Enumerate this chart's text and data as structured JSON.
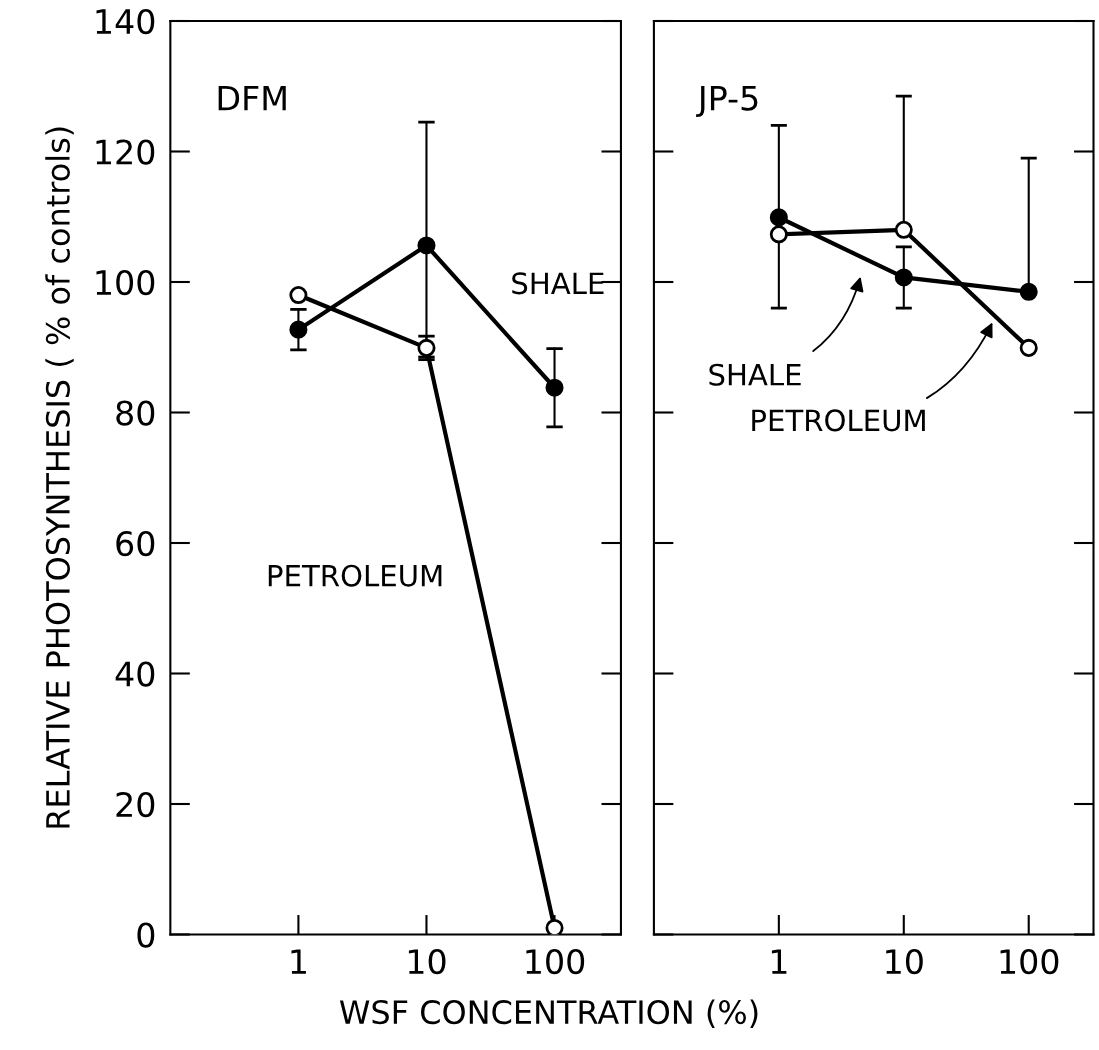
{
  "chart_data": [
    {
      "type": "line",
      "title": "DFM",
      "ylabel": "RELATIVE PHOTOSYNTHESIS ( % of controls)",
      "xlabel": "WSF CONCENTRATION (%)",
      "log": "x",
      "xlim": [
        0.1,
        330
      ],
      "xticks": [
        1,
        10,
        100
      ],
      "ylim": [
        0,
        140
      ],
      "yticks": [
        0,
        20,
        40,
        60,
        80,
        100,
        120,
        140
      ],
      "grid": false,
      "legend": false,
      "series": [
        {
          "color": "#000000",
          "marker": "circle",
          "x": [
            1,
            10,
            100
          ],
          "values": [
            92.7,
            105.6,
            83.8
          ],
          "errors": [
            3.1,
            [
              88.5,
              124.5
            ],
            6
          ]
        },
        {
          "color": "#000000",
          "marker": "circle",
          "x": [
            1,
            10,
            100
          ],
          "values": [
            98,
            89.9,
            1
          ],
          "errors": [
            null,
            1.8,
            null
          ]
        }
      ],
      "annotations": [
        "SHALE",
        "PETROLEUM"
      ]
    },
    {
      "type": "line",
      "title": "JP-5",
      "log": "x",
      "xlim": [
        0.1,
        330
      ],
      "xticks": [
        1,
        10,
        100
      ],
      "ylim": [
        0,
        140
      ],
      "yticks": [
        0,
        20,
        40,
        60,
        80,
        100,
        120,
        140
      ],
      "grid": false,
      "legend": false,
      "tick_labels": "x",
      "series": [
        {
          "color": "#000000",
          "marker": "circle",
          "x": [
            1,
            10,
            100
          ],
          "values": [
            109.9,
            100.7,
            98.5
          ],
          "errors": [
            [
              96,
              124
            ],
            4.7,
            [
              98.5,
              119
            ]
          ]
        },
        {
          "color": "#000000",
          "marker": "circle",
          "x": [
            1,
            10,
            100
          ],
          "values": [
            107.3,
            108,
            89.9
          ],
          "errors": [
            null,
            [
              108,
              128.5
            ],
            null
          ]
        }
      ],
      "annotations": [
        "SHALE",
        "PETROLEUM"
      ]
    }
  ]
}
